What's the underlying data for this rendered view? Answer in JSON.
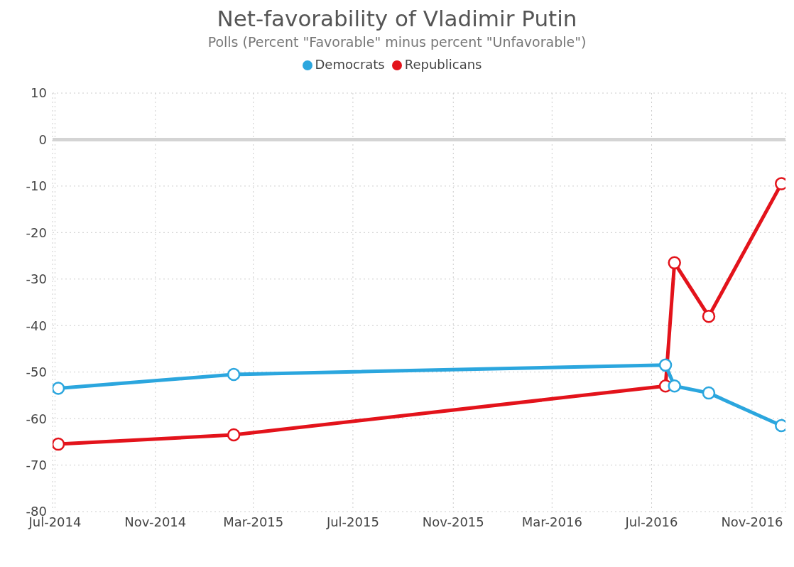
{
  "chart_data": {
    "type": "line",
    "title": "Net-favorability of Vladimir Putin",
    "subtitle": "Polls (Percent \"Favorable\" minus percent \"Unfavorable\")",
    "series": [
      {
        "name": "Republicans",
        "color": "#e3131b",
        "x": [
          "2014-07-05",
          "2015-02-05",
          "2016-07-18",
          "2016-07-29",
          "2016-09-09",
          "2016-12-07"
        ],
        "values": [
          -65.5,
          -63.5,
          -53,
          -26.5,
          -38,
          -9.5
        ]
      },
      {
        "name": "Democrats",
        "color": "#2ba6de",
        "x": [
          "2014-07-05",
          "2015-02-05",
          "2016-07-18",
          "2016-07-29",
          "2016-09-09",
          "2016-12-07"
        ],
        "values": [
          -53.5,
          -50.5,
          -48.5,
          -53,
          -54.5,
          -61.5
        ]
      }
    ],
    "xlim": [
      "2014-06-28",
      "2016-12-12"
    ],
    "xticks": [
      {
        "value": "2014-07",
        "label": "Jul-2014"
      },
      {
        "value": "2014-11",
        "label": "Nov-2014"
      },
      {
        "value": "2015-03",
        "label": "Mar-2015"
      },
      {
        "value": "2015-07",
        "label": "Jul-2015"
      },
      {
        "value": "2015-11",
        "label": "Nov-2015"
      },
      {
        "value": "2016-03",
        "label": "Mar-2016"
      },
      {
        "value": "2016-07",
        "label": "Jul-2016"
      },
      {
        "value": "2016-11",
        "label": "Nov-2016"
      }
    ],
    "ylim": [
      -80,
      10
    ],
    "yticks": [
      -80,
      -70,
      -60,
      -50,
      -40,
      -30,
      -20,
      -10,
      0,
      10
    ],
    "ref_lines": [
      {
        "axis": "y",
        "value": 0,
        "color": "#d4d4d4"
      }
    ],
    "grid": true,
    "legend": "top",
    "marker": "circle",
    "line_style": "solid"
  }
}
